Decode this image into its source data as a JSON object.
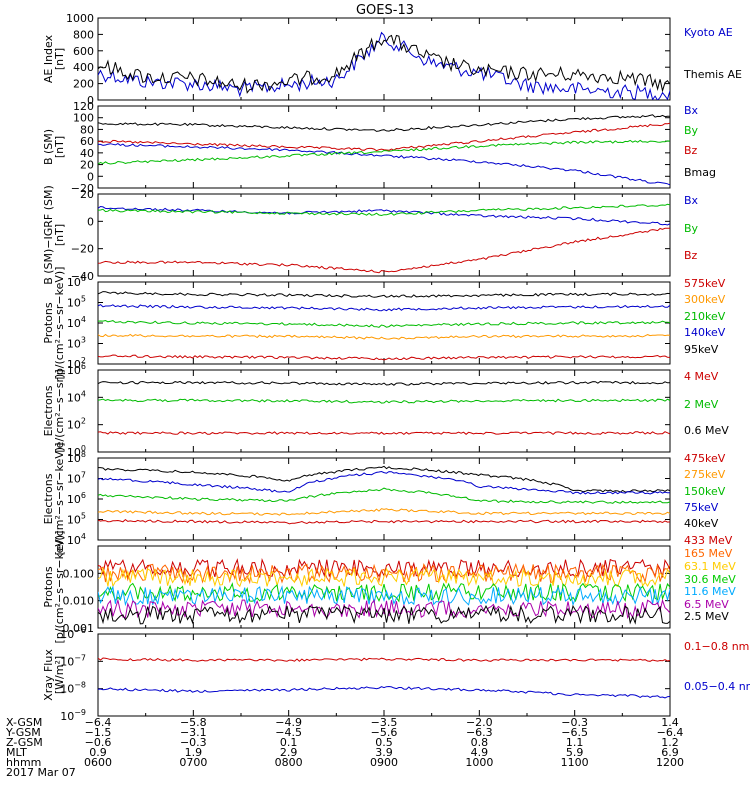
{
  "title": "GOES-13",
  "panels": [
    {
      "id": "ae",
      "ylabel": [
        "AE Index",
        "[nT]"
      ],
      "scale": "linear",
      "ylim": [
        0,
        1000
      ],
      "ticks": [
        {
          "v": 0,
          "t": "0"
        },
        {
          "v": 200,
          "t": "200"
        },
        {
          "v": 400,
          "t": "400"
        },
        {
          "v": 600,
          "t": "600"
        },
        {
          "v": 800,
          "t": "800"
        },
        {
          "v": 1000,
          "t": "1000"
        }
      ],
      "legend": [
        {
          "text": "Kyoto AE",
          "color": "#0000cc"
        },
        {
          "text": "Themis AE",
          "color": "#000000"
        }
      ]
    },
    {
      "id": "bsm",
      "ylabel": [
        "B (SM)",
        "[nT]"
      ],
      "scale": "linear",
      "ylim": [
        -20,
        120
      ],
      "ticks": [
        {
          "v": -20,
          "t": "−20"
        },
        {
          "v": 0,
          "t": "0"
        },
        {
          "v": 20,
          "t": "20"
        },
        {
          "v": 40,
          "t": "40"
        },
        {
          "v": 60,
          "t": "60"
        },
        {
          "v": 80,
          "t": "80"
        },
        {
          "v": 100,
          "t": "100"
        },
        {
          "v": 120,
          "t": "120"
        }
      ],
      "legend": [
        {
          "text": "Bx",
          "color": "#0000cc"
        },
        {
          "text": "By",
          "color": "#00bb00"
        },
        {
          "text": "Bz",
          "color": "#cc0000"
        },
        {
          "text": "Bmag",
          "color": "#000000"
        }
      ]
    },
    {
      "id": "bigrf",
      "ylabel": [
        "B (SM)−IGRF (SM)",
        "[nT]"
      ],
      "scale": "linear",
      "ylim": [
        -40,
        20
      ],
      "ticks": [
        {
          "v": -40,
          "t": "−40"
        },
        {
          "v": -20,
          "t": "−20"
        },
        {
          "v": 0,
          "t": "0"
        },
        {
          "v": 20,
          "t": "20"
        }
      ],
      "legend": [
        {
          "text": "Bx",
          "color": "#0000cc"
        },
        {
          "text": "By",
          "color": "#00bb00"
        },
        {
          "text": "Bz",
          "color": "#cc0000"
        }
      ]
    },
    {
      "id": "protons_kev",
      "ylabel": [
        "Protons",
        "[p/(cm²−s−sr−keV)]"
      ],
      "scale": "log",
      "ylim": [
        100,
        1000000
      ],
      "ticks": [
        {
          "v": 100,
          "t": "10",
          "sup": "2"
        },
        {
          "v": 1000,
          "t": "10",
          "sup": "3"
        },
        {
          "v": 10000,
          "t": "10",
          "sup": "4"
        },
        {
          "v": 100000,
          "t": "10",
          "sup": "5"
        },
        {
          "v": 1000000,
          "t": "10",
          "sup": "6"
        }
      ],
      "legend": [
        {
          "text": "575keV",
          "color": "#cc0000"
        },
        {
          "text": "300keV",
          "color": "#ff9900"
        },
        {
          "text": "210keV",
          "color": "#00bb00"
        },
        {
          "text": "140keV",
          "color": "#0000cc"
        },
        {
          "text": "95keV",
          "color": "#000000"
        }
      ]
    },
    {
      "id": "electrons_mev",
      "ylabel": [
        "Electrons",
        "[e/(cm²−s−sr)]"
      ],
      "scale": "log",
      "ylim": [
        1,
        1000000
      ],
      "ticks": [
        {
          "v": 1,
          "t": "10",
          "sup": "0"
        },
        {
          "v": 100,
          "t": "10",
          "sup": "2"
        },
        {
          "v": 10000,
          "t": "10",
          "sup": "4"
        },
        {
          "v": 1000000,
          "t": "10",
          "sup": "6"
        }
      ],
      "legend": [
        {
          "text": "4 MeV",
          "color": "#cc0000"
        },
        {
          "text": "2 MeV",
          "color": "#00bb00"
        },
        {
          "text": "0.6 MeV",
          "color": "#000000"
        }
      ]
    },
    {
      "id": "electrons_kev",
      "ylabel": [
        "Electrons",
        "[e/(cm²−s−sr−keV)]"
      ],
      "scale": "log",
      "ylim": [
        10000,
        100000000
      ],
      "ticks": [
        {
          "v": 10000,
          "t": "10",
          "sup": "4"
        },
        {
          "v": 100000,
          "t": "10",
          "sup": "5"
        },
        {
          "v": 1000000,
          "t": "10",
          "sup": "6"
        },
        {
          "v": 10000000,
          "t": "10",
          "sup": "7"
        },
        {
          "v": 100000000,
          "t": "10",
          "sup": "8"
        }
      ],
      "legend": [
        {
          "text": "475keV",
          "color": "#cc0000"
        },
        {
          "text": "275keV",
          "color": "#ff9900"
        },
        {
          "text": "150keV",
          "color": "#00bb00"
        },
        {
          "text": "75keV",
          "color": "#0000cc"
        },
        {
          "text": "40keV",
          "color": "#000000"
        }
      ]
    },
    {
      "id": "protons_mev",
      "ylabel": [
        "Protons",
        "[p/(cm²−s−sr−keV)]"
      ],
      "scale": "log",
      "ylim": [
        0.001,
        1
      ],
      "ticks": [
        {
          "v": 0.001,
          "t": "0.001"
        },
        {
          "v": 0.01,
          "t": "0.010"
        },
        {
          "v": 0.1,
          "t": "0.100"
        }
      ],
      "legend": [
        {
          "text": "433 MeV",
          "color": "#cc0000"
        },
        {
          "text": "165 MeV",
          "color": "#ff6600"
        },
        {
          "text": "63.1 MeV",
          "color": "#ffcc00"
        },
        {
          "text": "30.6 MeV",
          "color": "#00cc00"
        },
        {
          "text": "11.6 MeV",
          "color": "#00aaff"
        },
        {
          "text": "6.5 MeV",
          "color": "#aa00aa"
        },
        {
          "text": "2.5 MeV",
          "color": "#000000"
        }
      ]
    },
    {
      "id": "xray",
      "ylabel": [
        "Xray Flux",
        "[W/m²]"
      ],
      "scale": "log",
      "ylim": [
        1e-09,
        1e-06
      ],
      "ticks": [
        {
          "v": 1e-09,
          "t": "10",
          "sup": "−9"
        },
        {
          "v": 1e-08,
          "t": "10",
          "sup": "−8"
        },
        {
          "v": 1e-07,
          "t": "10",
          "sup": "−7"
        },
        {
          "v": 1e-06,
          "t": "10",
          "sup": "−6"
        }
      ],
      "legend": [
        {
          "text": "0.1−0.8 nm",
          "color": "#cc0000"
        },
        {
          "text": "0.05−0.4 nm",
          "color": "#0000cc"
        }
      ]
    }
  ],
  "x_axis": {
    "row_labels": [
      "X-GSM",
      "Y-GSM",
      "Z-GSM",
      "MLT",
      "hhmm",
      "2017 Mar 07"
    ],
    "columns": [
      [
        "−6.4",
        "−1.5",
        "−0.6",
        "0.9",
        "0600"
      ],
      [
        "−5.8",
        "−3.1",
        "−0.3",
        "1.9",
        "0700"
      ],
      [
        "−4.9",
        "−4.5",
        "0.1",
        "2.9",
        "0800"
      ],
      [
        "−3.5",
        "−5.6",
        "0.5",
        "3.9",
        "0900"
      ],
      [
        "−2.0",
        "−6.3",
        "0.8",
        "4.9",
        "1000"
      ],
      [
        "−0.3",
        "−6.5",
        "1.1",
        "5.9",
        "1100"
      ],
      [
        "1.4",
        "−6.4",
        "1.2",
        "6.9",
        "1200"
      ]
    ]
  },
  "chart_data": [
    {
      "type": "line",
      "x": [
        "0600",
        "0630",
        "0700",
        "0730",
        "0800",
        "0830",
        "0900",
        "0930",
        "1000",
        "1030",
        "1100",
        "1130",
        "1200"
      ],
      "ylabel": "AE Index [nT]",
      "ylim": [
        0,
        1000
      ],
      "series": [
        {
          "name": "Kyoto AE",
          "color": "#0000cc",
          "values": [
            330,
            220,
            200,
            130,
            180,
            250,
            760,
            450,
            330,
            180,
            130,
            100,
            80
          ]
        },
        {
          "name": "Themis AE",
          "color": "#000000",
          "values": [
            430,
            280,
            260,
            170,
            230,
            320,
            780,
            500,
            350,
            320,
            310,
            280,
            180
          ]
        }
      ]
    },
    {
      "type": "line",
      "x": [
        "0600",
        "0700",
        "0800",
        "0900",
        "1000",
        "1100",
        "1200"
      ],
      "ylabel": "B (SM) [nT]",
      "ylim": [
        -20,
        120
      ],
      "series": [
        {
          "name": "Bmag",
          "color": "#000000",
          "values": [
            90,
            88,
            83,
            78,
            88,
            98,
            104
          ]
        },
        {
          "name": "Bz",
          "color": "#cc0000",
          "values": [
            60,
            55,
            50,
            45,
            60,
            75,
            90
          ]
        },
        {
          "name": "Bx",
          "color": "#0000cc",
          "values": [
            55,
            50,
            45,
            35,
            25,
            10,
            -15
          ]
        },
        {
          "name": "By",
          "color": "#00bb00",
          "values": [
            22,
            28,
            35,
            42,
            52,
            58,
            60
          ]
        }
      ]
    },
    {
      "type": "line",
      "x": [
        "0600",
        "0700",
        "0800",
        "0900",
        "1000",
        "1100",
        "1200"
      ],
      "ylabel": "B (SM)-IGRF (SM) [nT]",
      "ylim": [
        -40,
        20
      ],
      "series": [
        {
          "name": "Bx",
          "color": "#0000cc",
          "values": [
            10,
            8,
            6,
            8,
            4,
            2,
            -2
          ]
        },
        {
          "name": "By",
          "color": "#00bb00",
          "values": [
            8,
            7,
            6,
            5,
            8,
            10,
            12
          ]
        },
        {
          "name": "Bz",
          "color": "#cc0000",
          "values": [
            -30,
            -30,
            -32,
            -37,
            -28,
            -15,
            -5
          ]
        }
      ]
    },
    {
      "type": "line",
      "x": [
        "0600",
        "0700",
        "0800",
        "0900",
        "1000",
        "1100",
        "1200"
      ],
      "ylabel": "Protons [p/(cm2-s-sr-keV)]",
      "yscale": "log",
      "ylim": [
        100,
        1000000
      ],
      "series": [
        {
          "name": "95keV",
          "color": "#000000",
          "values": [
            300000,
            250000,
            230000,
            200000,
            220000,
            250000,
            260000
          ]
        },
        {
          "name": "140keV",
          "color": "#0000cc",
          "values": [
            70000,
            60000,
            55000,
            45000,
            55000,
            60000,
            65000
          ]
        },
        {
          "name": "210keV",
          "color": "#00bb00",
          "values": [
            12000,
            10000,
            9000,
            7000,
            9000,
            10000,
            11000
          ]
        },
        {
          "name": "300keV",
          "color": "#ff9900",
          "values": [
            2500,
            2300,
            2200,
            1800,
            2200,
            2300,
            2400
          ]
        },
        {
          "name": "575keV",
          "color": "#cc0000",
          "values": [
            250,
            220,
            210,
            180,
            210,
            220,
            230
          ]
        }
      ]
    },
    {
      "type": "line",
      "x": [
        "0600",
        "0700",
        "0800",
        "0900",
        "1000",
        "1100",
        "1200"
      ],
      "ylabel": "Electrons [e/(cm2-s-sr)]",
      "yscale": "log",
      "ylim": [
        1,
        1000000
      ],
      "series": [
        {
          "name": "0.6 MeV",
          "color": "#000000",
          "values": [
            120000,
            120000,
            110000,
            90000,
            110000,
            120000,
            120000
          ]
        },
        {
          "name": "2 MeV",
          "color": "#00bb00",
          "values": [
            6000,
            6000,
            5500,
            4500,
            5500,
            6000,
            6000
          ]
        },
        {
          "name": "4 MeV",
          "color": "#cc0000",
          "values": [
            25,
            24,
            24,
            23,
            24,
            24,
            25
          ]
        }
      ]
    },
    {
      "type": "line",
      "x": [
        "0600",
        "0700",
        "0800",
        "0900",
        "1000",
        "1100",
        "1200"
      ],
      "ylabel": "Electrons [e/(cm2-s-sr-keV)]",
      "yscale": "log",
      "ylim": [
        10000,
        100000000
      ],
      "series": [
        {
          "name": "40keV",
          "color": "#000000",
          "values": [
            30000000,
            20000000,
            8000000,
            35000000,
            15000000,
            2500000,
            2500000
          ]
        },
        {
          "name": "75keV",
          "color": "#0000cc",
          "values": [
            10000000,
            5000000,
            2000000,
            20000000,
            4000000,
            2000000,
            2000000
          ]
        },
        {
          "name": "150keV",
          "color": "#00bb00",
          "values": [
            1500000,
            1000000,
            800000,
            3000000,
            800000,
            700000,
            700000
          ]
        },
        {
          "name": "275keV",
          "color": "#ff9900",
          "values": [
            250000,
            200000,
            180000,
            300000,
            200000,
            200000,
            200000
          ]
        },
        {
          "name": "475keV",
          "color": "#cc0000",
          "values": [
            90000,
            80000,
            70000,
            80000,
            80000,
            80000,
            80000
          ]
        }
      ]
    },
    {
      "type": "line",
      "x": [
        "0600",
        "0700",
        "0800",
        "0900",
        "1000",
        "1100",
        "1200"
      ],
      "ylabel": "Protons [p/(cm2-s-sr-keV)]",
      "yscale": "log",
      "ylim": [
        0.001,
        1
      ],
      "series": [
        {
          "name": "433 MeV",
          "color": "#cc0000",
          "values": [
            0.15,
            0.15,
            0.15,
            0.15,
            0.15,
            0.15,
            0.15
          ]
        },
        {
          "name": "165 MeV",
          "color": "#ff6600",
          "values": [
            0.1,
            0.1,
            0.1,
            0.1,
            0.1,
            0.1,
            0.1
          ]
        },
        {
          "name": "63.1 MeV",
          "color": "#ffcc00",
          "values": [
            0.07,
            0.07,
            0.07,
            0.07,
            0.07,
            0.07,
            0.07
          ]
        },
        {
          "name": "30.6 MeV",
          "color": "#00cc00",
          "values": [
            0.02,
            0.02,
            0.02,
            0.02,
            0.02,
            0.02,
            0.02
          ]
        },
        {
          "name": "11.6 MeV",
          "color": "#00aaff",
          "values": [
            0.015,
            0.015,
            0.015,
            0.015,
            0.015,
            0.015,
            0.015
          ]
        },
        {
          "name": "6.5 MeV",
          "color": "#aa00aa",
          "values": [
            0.005,
            0.005,
            0.005,
            0.005,
            0.005,
            0.005,
            0.005
          ]
        },
        {
          "name": "2.5 MeV",
          "color": "#000000",
          "values": [
            0.003,
            0.003,
            0.003,
            0.003,
            0.003,
            0.003,
            0.003
          ]
        }
      ]
    },
    {
      "type": "line",
      "x": [
        "0600",
        "0700",
        "0800",
        "0900",
        "1000",
        "1100",
        "1200"
      ],
      "ylabel": "Xray Flux [W/m2]",
      "yscale": "log",
      "ylim": [
        1e-09,
        1e-06
      ],
      "series": [
        {
          "name": "0.1-0.8 nm",
          "color": "#cc0000",
          "values": [
            1.2e-07,
            1.1e-07,
            1.1e-07,
            1.2e-07,
            1.1e-07,
            1.1e-07,
            1.1e-07
          ]
        },
        {
          "name": "0.05-0.4 nm",
          "color": "#0000cc",
          "values": [
            1e-08,
            8e-09,
            9e-09,
            1.1e-08,
            9e-09,
            6e-09,
            5e-09
          ]
        }
      ]
    }
  ]
}
